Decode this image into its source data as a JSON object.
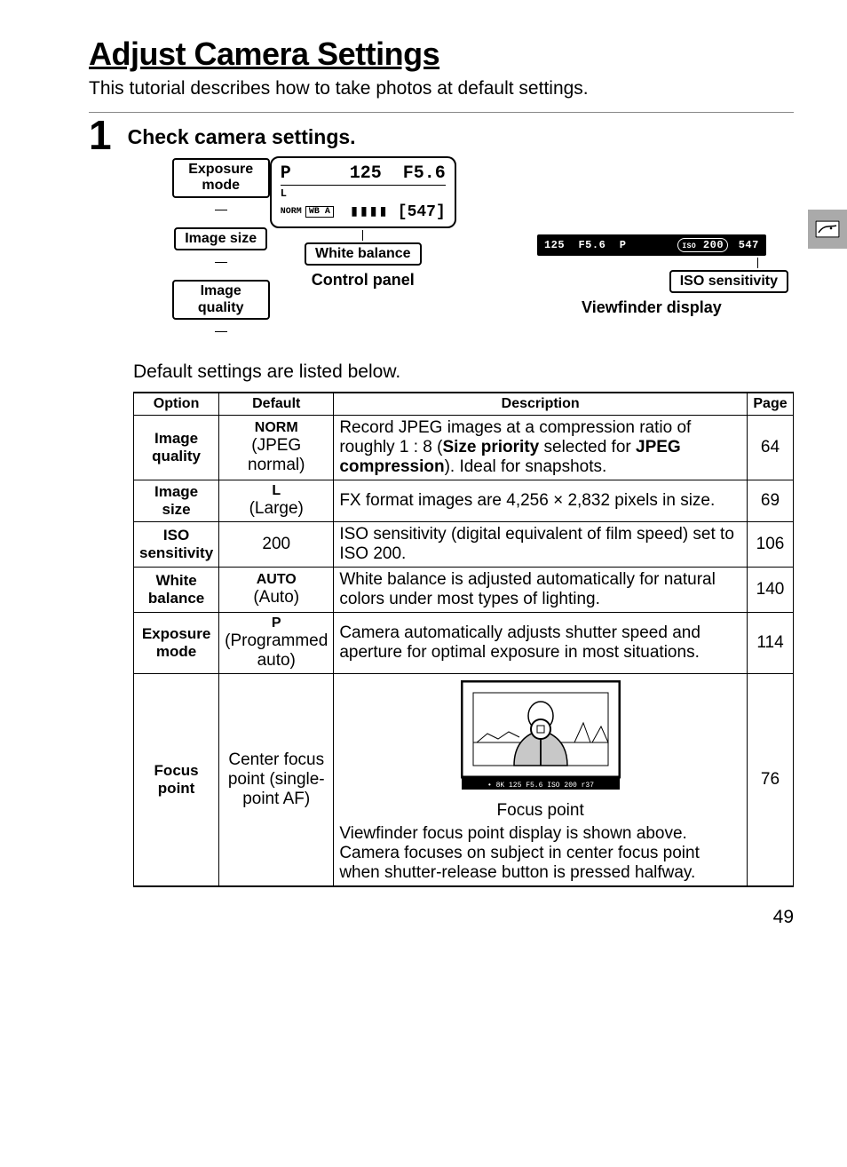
{
  "title": "Adjust Camera Settings",
  "subtitle": "This tutorial describes how to take photos at default settings.",
  "step": {
    "number": "1",
    "heading": "Check camera settings."
  },
  "pills": {
    "exposure_mode": "Exposure mode",
    "image_size": "Image size",
    "image_quality": "Image quality",
    "white_balance": "White balance",
    "iso_sensitivity": "ISO sensitivity"
  },
  "lcd": {
    "mode": "P",
    "shutter": "125",
    "aperture": "F5.6",
    "size_flag": "L",
    "battery": "▮▮▮▮",
    "frames": "[547]",
    "norm": "NORM",
    "wb": "WB A"
  },
  "viewfinder": {
    "shutter": "125",
    "aperture": "F5.6",
    "mode": "P",
    "iso_label": "ISO",
    "iso_value": "200",
    "frames": "547"
  },
  "captions": {
    "control_panel": "Control panel",
    "viewfinder": "Viewfinder display"
  },
  "body_text": "Default settings are listed below.",
  "table": {
    "headers": {
      "option": "Option",
      "default": "Default",
      "description": "Description",
      "page": "Page"
    },
    "rows": [
      {
        "option": "Image quality",
        "default_primary": "NORM",
        "default_secondary": "(JPEG normal)",
        "description_html": "Record JPEG images at a compression ratio of roughly 1 : 8 (<b>Size priority</b> selected for <b>JPEG compression</b>).  Ideal for snapshots.",
        "page": "64"
      },
      {
        "option": "Image size",
        "default_primary": "L",
        "default_secondary": "(Large)",
        "description_html": "FX format images are 4,256 × 2,832 pixels in size.",
        "page": "69"
      },
      {
        "option": "ISO sensitivity",
        "default_primary": "",
        "default_secondary": "200",
        "description_html": "ISO sensitivity (digital equivalent of film speed) set to ISO 200.",
        "page": "106"
      },
      {
        "option": "White balance",
        "default_primary": "AUTO",
        "default_secondary": "(Auto)",
        "description_html": "White balance is adjusted automatically for natural colors under most types of lighting.",
        "page": "140"
      },
      {
        "option": "Exposure mode",
        "default_primary": "P",
        "default_secondary": "(Programmed auto)",
        "description_html": "Camera automatically adjusts shutter speed and aperture for optimal exposure in most situations.",
        "page": "114"
      },
      {
        "option": "Focus point",
        "default_primary": "",
        "default_secondary": "Center focus point (single-point AF)",
        "description_html": "",
        "page": "76"
      }
    ],
    "focus_point": {
      "caption": "Focus point",
      "text": "Viewfinder focus point display is shown above.  Camera focuses on subject in center focus point when shutter-release button is pressed halfway."
    }
  },
  "page_number": "49",
  "colors": {
    "tab_bg": "#aaaaaa"
  }
}
